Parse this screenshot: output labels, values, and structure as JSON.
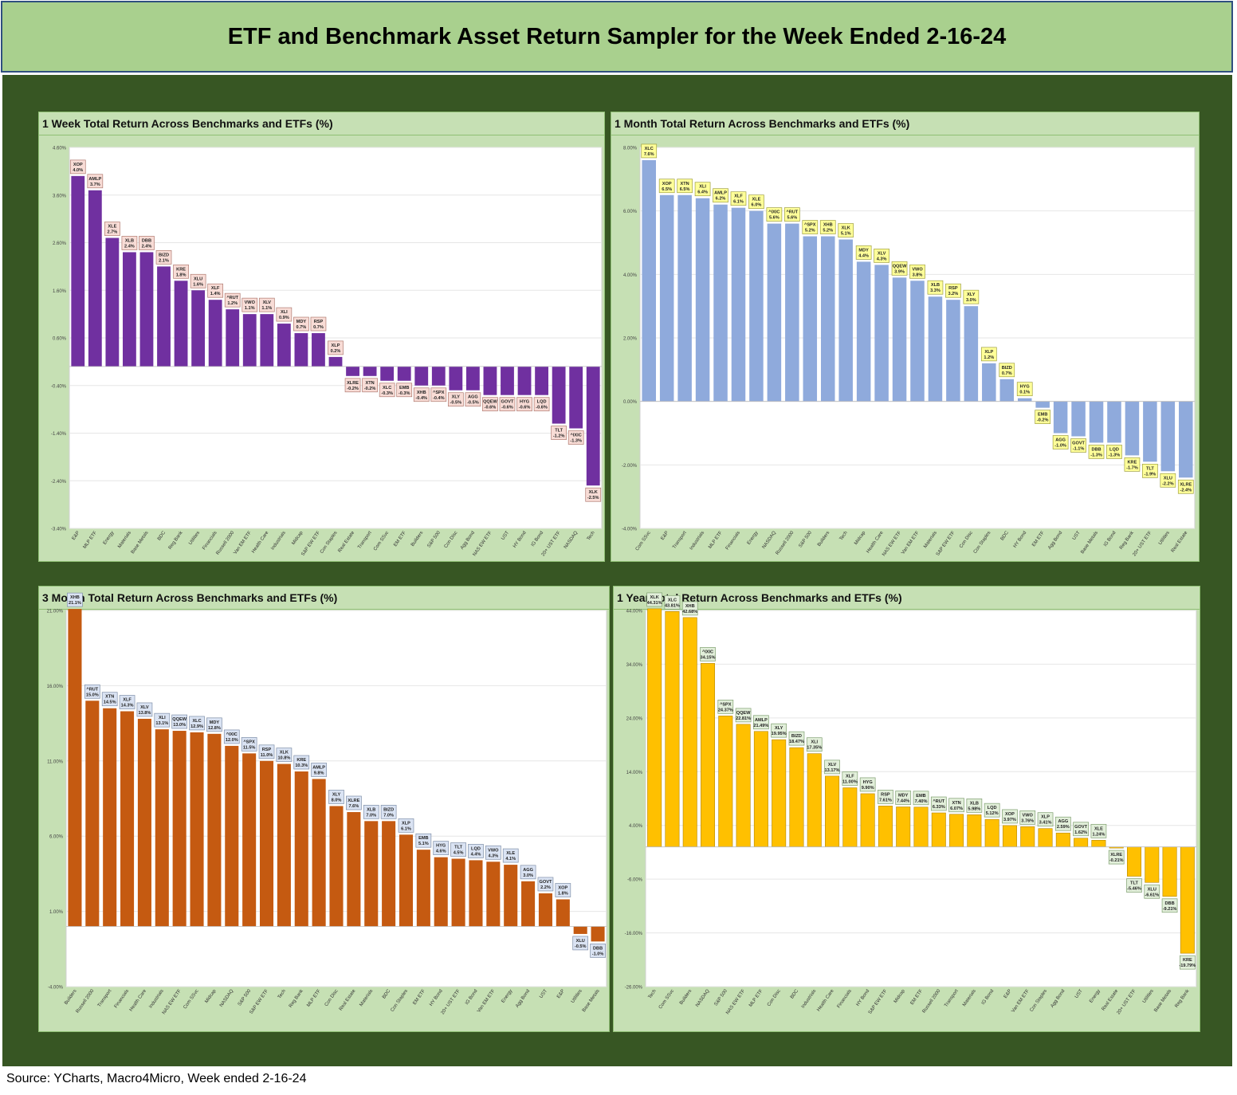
{
  "header": {
    "title": "ETF and Benchmark Asset Return Sampler for the Week Ended 2-16-24"
  },
  "source": "Source: YCharts, Macro4Micro, Week ended 2-16-24",
  "colors": {
    "header_bg": "#a9d08e",
    "board_bg": "#375623",
    "panel_bg": "#c6e0b4",
    "week_bar": "#7030a0",
    "week_label": "#f8dcd6",
    "month_bar": "#8faadc",
    "month_label": "#ffff99",
    "quarter_bar": "#c55a11",
    "quarter_label": "#dae3f3",
    "year_bar": "#ffc000",
    "year_label": "#e2efda"
  },
  "chart_data": [
    {
      "title": "1 Week Total Return Across Benchmarks and ETFs (%)",
      "type": "bar",
      "ylim": [
        -3.4,
        4.6
      ],
      "yticks": [
        "4.60%",
        "3.60%",
        "2.60%",
        "1.60%",
        "0.60%",
        "-0.40%",
        "-1.40%",
        "-2.40%",
        "-3.40%"
      ],
      "categories": [
        "E&P",
        "MLP ETF",
        "Energy",
        "Materials",
        "Base Metals",
        "BDC",
        "Reg Bank",
        "Utilities",
        "Financials",
        "Russell 2000",
        "Van EM ETF",
        "Health Care",
        "Industrials",
        "Midcap",
        "S&P EW ETF",
        "Con Staples",
        "Real Estate",
        "Transport",
        "Com SSvc",
        "EM ETF",
        "Builders",
        "S&P 500",
        "Con Disc",
        "Agg Bond",
        "NAS EW ETF",
        "UST",
        "HY Bond",
        "IG Bond",
        "20+ UST ETF",
        "NASDAQ",
        "Tech"
      ],
      "tickers": [
        "XOP",
        "AMLP",
        "XLE",
        "XLB",
        "DBB",
        "BIZD",
        "KRE",
        "XLU",
        "XLF",
        "^RUT",
        "VWO",
        "XLV",
        "XLI",
        "MDY",
        "RSP",
        "XLP",
        "XLRE",
        "XTN",
        "XLC",
        "EMB",
        "XHB",
        "^SPX",
        "XLY",
        "AGG",
        "QQEW",
        "GOVT",
        "HYG",
        "LQD",
        "TLT",
        "^IXIC",
        "XLK"
      ],
      "value_labels": [
        "4.0%",
        "3.7%",
        "2.7%",
        "2.4%",
        "2.4%",
        "2.1%",
        "1.8%",
        "1.6%",
        "1.4%",
        "1.2%",
        "1.1%",
        "1.1%",
        "0.9%",
        "0.7%",
        "0.7%",
        "0.2%",
        "-0.2%",
        "-0.2%",
        "-0.3%",
        "-0.3%",
        "-0.4%",
        "-0.4%",
        "-0.5%",
        "-0.5%",
        "-0.6%",
        "-0.6%",
        "-0.6%",
        "-0.6%",
        "-1.2%",
        "-1.3%",
        "-2.5%"
      ],
      "values": [
        4.0,
        3.7,
        2.7,
        2.4,
        2.4,
        2.1,
        1.8,
        1.6,
        1.4,
        1.2,
        1.1,
        1.1,
        0.9,
        0.7,
        0.7,
        0.2,
        -0.2,
        -0.2,
        -0.3,
        -0.3,
        -0.4,
        -0.4,
        -0.5,
        -0.5,
        -0.6,
        -0.6,
        -0.6,
        -0.6,
        -1.2,
        -1.3,
        -2.5
      ]
    },
    {
      "title": "1 Month Total Return Across Benchmarks and ETFs (%)",
      "type": "bar",
      "ylim": [
        -4.0,
        8.0
      ],
      "yticks": [
        "8.00%",
        "6.00%",
        "4.00%",
        "2.00%",
        "0.00%",
        "-2.00%",
        "-4.00%"
      ],
      "categories": [
        "Com SSvc",
        "E&P",
        "Transport",
        "Industrials",
        "MLP ETF",
        "Financials",
        "Energy",
        "NASDAQ",
        "Russell 2000",
        "S&P 500",
        "Builders",
        "Tech",
        "Midcap",
        "Health Care",
        "NAS EW ETF",
        "Van EM ETF",
        "Materials",
        "S&P EW ETF",
        "Con Disc",
        "Con Staples",
        "BDC",
        "HY Bond",
        "EM ETF",
        "Agg Bond",
        "UST",
        "Base Metals",
        "IG Bond",
        "Reg Bank",
        "20+ UST ETF",
        "Utilities",
        "Real Estate"
      ],
      "tickers": [
        "XLC",
        "XOP",
        "XTN",
        "XLI",
        "AMLP",
        "XLF",
        "XLE",
        "^IXIC",
        "^RUT",
        "^SPX",
        "XHB",
        "XLK",
        "MDY",
        "XLV",
        "QQEW",
        "VWO",
        "XLB",
        "RSP",
        "XLY",
        "XLP",
        "BIZD",
        "HYG",
        "EMB",
        "AGG",
        "GOVT",
        "DBB",
        "LQD",
        "KRE",
        "TLT",
        "XLU",
        "XLRE"
      ],
      "value_labels": [
        "7.6%",
        "6.5%",
        "6.5%",
        "6.4%",
        "6.2%",
        "6.1%",
        "6.0%",
        "5.6%",
        "5.6%",
        "5.2%",
        "5.2%",
        "5.1%",
        "4.4%",
        "4.3%",
        "3.9%",
        "3.8%",
        "3.3%",
        "3.2%",
        "3.0%",
        "1.2%",
        "0.7%",
        "0.1%",
        "-0.2%",
        "-1.0%",
        "-1.1%",
        "-1.3%",
        "-1.3%",
        "-1.7%",
        "-1.9%",
        "-2.2%",
        "-2.4%"
      ],
      "values": [
        7.6,
        6.5,
        6.5,
        6.4,
        6.2,
        6.1,
        6.0,
        5.6,
        5.6,
        5.2,
        5.2,
        5.1,
        4.4,
        4.3,
        3.9,
        3.8,
        3.3,
        3.2,
        3.0,
        1.2,
        0.7,
        0.1,
        -0.2,
        -1.0,
        -1.1,
        -1.3,
        -1.3,
        -1.7,
        -1.9,
        -2.2,
        -2.4
      ]
    },
    {
      "title": "3 Month Total Return Across Benchmarks and ETFs (%)",
      "type": "bar",
      "ylim": [
        -4.0,
        21.0
      ],
      "yticks": [
        "21.00%",
        "16.00%",
        "11.00%",
        "6.00%",
        "1.00%",
        "-4.00%"
      ],
      "categories": [
        "Builders",
        "Russell 2000",
        "Transport",
        "Financials",
        "Health Care",
        "Industrials",
        "NAS EW ETF",
        "Com SSvc",
        "Midcap",
        "NASDAQ",
        "S&P 500",
        "S&P EW ETF",
        "Tech",
        "Reg Bank",
        "MLP ETF",
        "Con Disc",
        "Real Estate",
        "Materials",
        "BDC",
        "Con Staples",
        "EM ETF",
        "HY Bond",
        "20+ UST ETF",
        "IG Bond",
        "Van EM ETF",
        "Energy",
        "Agg Bond",
        "UST",
        "E&P",
        "Utilities",
        "Base Metals"
      ],
      "tickers": [
        "XHB",
        "^RUT",
        "XTN",
        "XLF",
        "XLV",
        "XLI",
        "QQEW",
        "XLC",
        "MDY",
        "^IXIC",
        "^SPX",
        "RSP",
        "XLK",
        "KRE",
        "AMLP",
        "XLY",
        "XLRE",
        "XLB",
        "BIZD",
        "XLP",
        "EMB",
        "HYG",
        "TLT",
        "LQD",
        "VWO",
        "XLE",
        "AGG",
        "GOVT",
        "XOP",
        "XLU",
        "DBB"
      ],
      "value_labels": [
        "21.1%",
        "15.0%",
        "14.5%",
        "14.3%",
        "13.8%",
        "13.1%",
        "13.0%",
        "12.9%",
        "12.8%",
        "12.0%",
        "11.5%",
        "11.0%",
        "10.8%",
        "10.3%",
        "9.8%",
        "8.0%",
        "7.6%",
        "7.0%",
        "7.0%",
        "6.1%",
        "5.1%",
        "4.6%",
        "4.5%",
        "4.4%",
        "4.3%",
        "4.1%",
        "3.0%",
        "2.2%",
        "1.8%",
        "-0.5%",
        "-1.0%"
      ],
      "values": [
        21.1,
        15.0,
        14.5,
        14.3,
        13.8,
        13.1,
        13.0,
        12.9,
        12.8,
        12.0,
        11.5,
        11.0,
        10.8,
        10.3,
        9.8,
        8.0,
        7.6,
        7.0,
        7.0,
        6.1,
        5.1,
        4.6,
        4.5,
        4.4,
        4.3,
        4.1,
        3.0,
        2.2,
        1.8,
        -0.5,
        -1.0
      ]
    },
    {
      "title": "1 Year Total Return Across Benchmarks and ETFs (%)",
      "type": "bar",
      "ylim": [
        -26.0,
        44.0
      ],
      "yticks": [
        "44.00%",
        "34.00%",
        "24.00%",
        "14.00%",
        "4.00%",
        "-6.00%",
        "-16.00%",
        "-26.00%"
      ],
      "categories": [
        "Tech",
        "Com SSvc",
        "Builders",
        "NASDAQ",
        "S&P 500",
        "NAS EW ETF",
        "MLP ETF",
        "Con Disc",
        "BDC",
        "Industrials",
        "Health Care",
        "Financials",
        "HY Bond",
        "S&P EW ETF",
        "Midcap",
        "EM ETF",
        "Russell 2000",
        "Transport",
        "Materials",
        "IG Bond",
        "E&P",
        "Van EM ETF",
        "Con Staples",
        "Agg Bond",
        "UST",
        "Energy",
        "Real Estate",
        "20+ UST ETF",
        "Utilities",
        "Base Metals",
        "Reg Bank"
      ],
      "tickers": [
        "XLK",
        "XLC",
        "XHB",
        "^IXIC",
        "^SPX",
        "QQEW",
        "AMLP",
        "XLY",
        "BIZD",
        "XLI",
        "XLV",
        "XLF",
        "HYG",
        "RSP",
        "MDY",
        "EMB",
        "^RUT",
        "XTN",
        "XLB",
        "LQD",
        "XOP",
        "VWO",
        "XLP",
        "AGG",
        "GOVT",
        "XLE",
        "XLRE",
        "TLT",
        "XLU",
        "DBB",
        "KRE"
      ],
      "value_labels": [
        "44.31%",
        "43.81%",
        "42.68%",
        "34.15%",
        "24.37%",
        "22.81%",
        "21.49%",
        "19.95%",
        "18.47%",
        "17.35%",
        "13.17%",
        "11.00%",
        "9.90%",
        "7.61%",
        "7.44%",
        "7.40%",
        "6.33%",
        "6.07%",
        "5.98%",
        "5.12%",
        "3.97%",
        "3.76%",
        "3.41%",
        "2.59%",
        "1.62%",
        "1.24%",
        "-0.21%",
        "-5.46%",
        "-6.61%",
        "-9.21%",
        "-19.79%"
      ],
      "values": [
        44.31,
        43.81,
        42.68,
        34.15,
        24.37,
        22.81,
        21.49,
        19.95,
        18.47,
        17.35,
        13.17,
        11.0,
        9.9,
        7.61,
        7.44,
        7.4,
        6.33,
        6.07,
        5.98,
        5.12,
        3.97,
        3.76,
        3.41,
        2.59,
        1.62,
        1.24,
        -0.21,
        -5.46,
        -6.61,
        -9.21,
        -19.79
      ]
    }
  ]
}
